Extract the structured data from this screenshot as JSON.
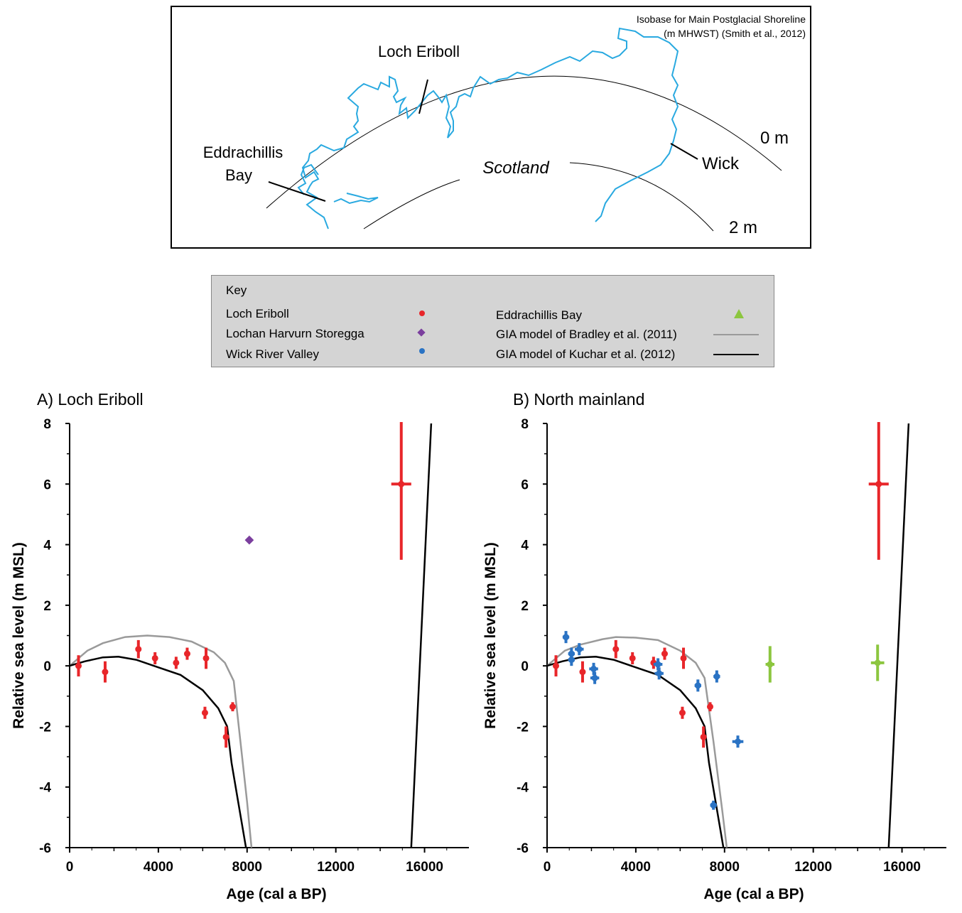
{
  "map": {
    "isobase_title_line1": "Isobase for Main Postglacial Shoreline",
    "isobase_title_line2": "(m MHWST) (Smith et al., 2012)",
    "labels": {
      "loch_eriboll": "Loch Eriboll",
      "eddrachillis_line1": "Eddrachillis",
      "eddrachillis_line2": "Bay",
      "scotland": "Scotland",
      "wick": "Wick",
      "isobase_0": "0 m",
      "isobase_2": "2 m"
    },
    "coast_color": "#29a9e0"
  },
  "key": {
    "title": "Key",
    "items": [
      {
        "label": "Loch Eriboll",
        "symbol": "dot",
        "color": "#e8262a"
      },
      {
        "label": "Lochan Harvurn Storegga",
        "symbol": "diamond",
        "color": "#7b3f9e"
      },
      {
        "label": "Wick River Valley",
        "symbol": "dot",
        "color": "#2a73c4"
      },
      {
        "label": "Eddrachillis Bay",
        "symbol": "triangle",
        "color": "#8cc63f"
      },
      {
        "label": "GIA model of Bradley et al. (2011)",
        "symbol": "line",
        "color": "#9a9a9a"
      },
      {
        "label": "GIA model of Kuchar et al. (2012)",
        "symbol": "line",
        "color": "#000000"
      }
    ]
  },
  "chart_data": [
    {
      "type": "scatter",
      "title": "A)  Loch Eriboll",
      "xlabel": "Age (cal a BP)",
      "ylabel": "Relative sea level (m MSL)",
      "xlim": [
        0,
        18000
      ],
      "ylim": [
        -6,
        8
      ],
      "xticks": [
        0,
        4000,
        8000,
        12000,
        16000
      ],
      "yticks": [
        8,
        6,
        4,
        2,
        0,
        -2,
        -4,
        -6
      ],
      "series": [
        {
          "name": "Loch Eriboll",
          "kind": "points",
          "color": "#e8262a",
          "points": [
            {
              "x": 400,
              "y": 0.0,
              "yerr": 0.35,
              "xerr": 0
            },
            {
              "x": 1600,
              "y": -0.2,
              "yerr": 0.35,
              "xerr": 0
            },
            {
              "x": 3100,
              "y": 0.55,
              "yerr": 0.3,
              "xerr": 0
            },
            {
              "x": 3850,
              "y": 0.25,
              "yerr": 0.2,
              "xerr": 0
            },
            {
              "x": 4800,
              "y": 0.1,
              "yerr": 0.2,
              "xerr": 0
            },
            {
              "x": 5300,
              "y": 0.4,
              "yerr": 0.2,
              "xerr": 0
            },
            {
              "x": 6150,
              "y": 0.25,
              "yerr": 0.35,
              "xerr": 0
            },
            {
              "x": 6100,
              "y": -1.55,
              "yerr": 0.2,
              "xerr": 0
            },
            {
              "x": 7050,
              "y": -2.35,
              "yerr": 0.35,
              "xerr": 0
            },
            {
              "x": 7350,
              "y": -1.35,
              "yerr": 0.15,
              "xerr": 0
            },
            {
              "x": 14950,
              "y": 6.0,
              "yerr": 2.5,
              "xerr": 450
            }
          ]
        },
        {
          "name": "Lochan Harvurn Storegga",
          "kind": "diamond",
          "color": "#7b3f9e",
          "points": [
            {
              "x": 8100,
              "y": 4.15
            }
          ]
        },
        {
          "name": "GIA model of Bradley et al. (2011)",
          "kind": "line",
          "color": "#9a9a9a",
          "points": [
            [
              0,
              0
            ],
            [
              800,
              0.5
            ],
            [
              1500,
              0.75
            ],
            [
              2500,
              0.95
            ],
            [
              3500,
              1.0
            ],
            [
              4500,
              0.95
            ],
            [
              5500,
              0.8
            ],
            [
              6500,
              0.45
            ],
            [
              7000,
              0.1
            ],
            [
              7400,
              -0.5
            ],
            [
              7700,
              -2.5
            ],
            [
              8000,
              -4.5
            ],
            [
              8200,
              -6
            ]
          ]
        },
        {
          "name": "GIA model of Kuchar et al. (2012)",
          "kind": "line",
          "color": "#000000",
          "points": [
            [
              0,
              0
            ],
            [
              700,
              0.15
            ],
            [
              1500,
              0.28
            ],
            [
              2200,
              0.3
            ],
            [
              3000,
              0.2
            ],
            [
              4000,
              -0.05
            ],
            [
              5000,
              -0.3
            ],
            [
              6000,
              -0.8
            ],
            [
              6700,
              -1.4
            ],
            [
              7100,
              -2.0
            ],
            [
              7300,
              -3.2
            ],
            [
              7600,
              -4.5
            ],
            [
              7950,
              -6
            ]
          ]
        },
        {
          "name": "GIA model of Kuchar et al. (2012) (late)",
          "kind": "line",
          "color": "#000000",
          "points": [
            [
              15400,
              -6
            ],
            [
              16300,
              8
            ]
          ]
        }
      ]
    },
    {
      "type": "scatter",
      "title": "B)  North mainland",
      "xlabel": "Age (cal a BP)",
      "ylabel": "Relative sea level (m MSL)",
      "xlim": [
        0,
        18000
      ],
      "ylim": [
        -6,
        8
      ],
      "xticks": [
        0,
        4000,
        8000,
        12000,
        16000
      ],
      "yticks": [
        8,
        6,
        4,
        2,
        0,
        -2,
        -4,
        -6
      ],
      "series": [
        {
          "name": "Loch Eriboll",
          "kind": "points",
          "color": "#e8262a",
          "points": [
            {
              "x": 400,
              "y": 0.0,
              "yerr": 0.35,
              "xerr": 0
            },
            {
              "x": 1600,
              "y": -0.2,
              "yerr": 0.35,
              "xerr": 0
            },
            {
              "x": 3100,
              "y": 0.55,
              "yerr": 0.3,
              "xerr": 0
            },
            {
              "x": 3850,
              "y": 0.25,
              "yerr": 0.2,
              "xerr": 0
            },
            {
              "x": 4800,
              "y": 0.1,
              "yerr": 0.2,
              "xerr": 0
            },
            {
              "x": 5300,
              "y": 0.4,
              "yerr": 0.2,
              "xerr": 0
            },
            {
              "x": 6150,
              "y": 0.25,
              "yerr": 0.35,
              "xerr": 0
            },
            {
              "x": 6100,
              "y": -1.55,
              "yerr": 0.2,
              "xerr": 0
            },
            {
              "x": 7050,
              "y": -2.35,
              "yerr": 0.35,
              "xerr": 0
            },
            {
              "x": 7350,
              "y": -1.35,
              "yerr": 0.15,
              "xerr": 0
            },
            {
              "x": 14950,
              "y": 6.0,
              "yerr": 2.5,
              "xerr": 450
            }
          ]
        },
        {
          "name": "Wick River Valley",
          "kind": "points",
          "color": "#2a73c4",
          "points": [
            {
              "x": 850,
              "y": 0.95,
              "yerr": 0.2,
              "xerr": 150
            },
            {
              "x": 1100,
              "y": 0.4,
              "yerr": 0.2,
              "xerr": 150
            },
            {
              "x": 1100,
              "y": 0.2,
              "yerr": 0.2,
              "xerr": 150
            },
            {
              "x": 1450,
              "y": 0.55,
              "yerr": 0.2,
              "xerr": 200
            },
            {
              "x": 2100,
              "y": -0.1,
              "yerr": 0.2,
              "xerr": 200
            },
            {
              "x": 2150,
              "y": -0.4,
              "yerr": 0.2,
              "xerr": 200
            },
            {
              "x": 5000,
              "y": 0.05,
              "yerr": 0.2,
              "xerr": 200
            },
            {
              "x": 5050,
              "y": -0.25,
              "yerr": 0.2,
              "xerr": 200
            },
            {
              "x": 6800,
              "y": -0.65,
              "yerr": 0.2,
              "xerr": 150
            },
            {
              "x": 7650,
              "y": -0.35,
              "yerr": 0.2,
              "xerr": 150
            },
            {
              "x": 7500,
              "y": -4.6,
              "yerr": 0.15,
              "xerr": 150
            },
            {
              "x": 8600,
              "y": -2.5,
              "yerr": 0.2,
              "xerr": 250
            }
          ]
        },
        {
          "name": "Eddrachillis Bay",
          "kind": "points",
          "color": "#8cc63f",
          "points": [
            {
              "x": 10050,
              "y": 0.05,
              "yerr": 0.6,
              "xerr": 200
            },
            {
              "x": 14900,
              "y": 0.1,
              "yerr": 0.6,
              "xerr": 300
            }
          ]
        },
        {
          "name": "GIA model of Bradley et al. (2011)",
          "kind": "line",
          "color": "#9a9a9a",
          "points": [
            [
              0,
              0
            ],
            [
              800,
              0.5
            ],
            [
              1500,
              0.7
            ],
            [
              2500,
              0.88
            ],
            [
              3100,
              0.95
            ],
            [
              4000,
              0.93
            ],
            [
              5000,
              0.85
            ],
            [
              6000,
              0.5
            ],
            [
              6700,
              0.1
            ],
            [
              7100,
              -0.4
            ],
            [
              7500,
              -2.5
            ],
            [
              7900,
              -4.8
            ],
            [
              8100,
              -6
            ]
          ]
        },
        {
          "name": "GIA model of Kuchar et al. (2012)",
          "kind": "line",
          "color": "#000000",
          "points": [
            [
              0,
              0
            ],
            [
              700,
              0.15
            ],
            [
              1500,
              0.28
            ],
            [
              2200,
              0.3
            ],
            [
              3000,
              0.2
            ],
            [
              4000,
              -0.05
            ],
            [
              5000,
              -0.3
            ],
            [
              6000,
              -0.8
            ],
            [
              6700,
              -1.4
            ],
            [
              7100,
              -2.0
            ],
            [
              7300,
              -3.2
            ],
            [
              7600,
              -4.5
            ],
            [
              7950,
              -6
            ]
          ]
        },
        {
          "name": "GIA model of Kuchar et al. (2012) (late)",
          "kind": "line",
          "color": "#000000",
          "points": [
            [
              15400,
              -6
            ],
            [
              16300,
              8
            ]
          ]
        }
      ]
    }
  ]
}
